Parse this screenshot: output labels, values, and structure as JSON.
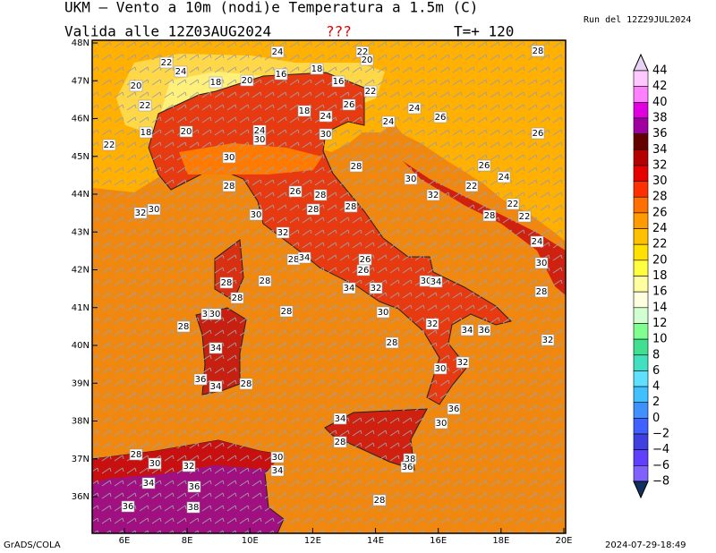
{
  "header": {
    "title": "UKM – Vento a 10m (nodi)e Temperatura a 1.5m (C)",
    "valid": "Valida alle 12Z03AUG2024",
    "flag": "???",
    "lead": "T=+ 120",
    "run": "Run del 12Z29JUL2024"
  },
  "map": {
    "lat_labels": [
      "48N",
      "47N",
      "46N",
      "45N",
      "44N",
      "43N",
      "42N",
      "41N",
      "40N",
      "39N",
      "38N",
      "37N",
      "36N"
    ],
    "lon_labels": [
      "6E",
      "8E",
      "10E",
      "12E",
      "14E",
      "16E",
      "18E",
      "20E"
    ],
    "contour_labels": [
      "24",
      "22",
      "24",
      "22",
      "20",
      "28",
      "16",
      "18",
      "20",
      "18",
      "20",
      "16",
      "22",
      "22",
      "18",
      "24",
      "26",
      "24",
      "24",
      "26",
      "20",
      "18",
      "24",
      "30",
      "30",
      "26",
      "22",
      "30",
      "28",
      "26",
      "24",
      "30",
      "32",
      "28",
      "26",
      "28",
      "22",
      "32",
      "30",
      "28",
      "28",
      "30",
      "28",
      "22",
      "22",
      "32",
      "24",
      "28",
      "34",
      "26",
      "30",
      "28",
      "28",
      "30",
      "34",
      "34",
      "32",
      "28",
      "28",
      "26",
      "32",
      "30",
      "28",
      "30",
      "32",
      "34",
      "36",
      "32",
      "28",
      "28",
      "34",
      "32",
      "30",
      "36",
      "34",
      "28",
      "34",
      "36",
      "30",
      "28",
      "38",
      "36",
      "28",
      "30",
      "32",
      "30",
      "34",
      "34",
      "36",
      "38",
      "36",
      "28"
    ]
  },
  "colorbar": {
    "labels": [
      "44",
      "42",
      "40",
      "38",
      "36",
      "34",
      "32",
      "30",
      "28",
      "26",
      "24",
      "22",
      "20",
      "18",
      "16",
      "14",
      "12",
      "10",
      "8",
      "6",
      "4",
      "2",
      "0",
      "−2",
      "−4",
      "−6",
      "−8"
    ],
    "colors": [
      "#e6d2f5",
      "#ffc8ff",
      "#ff80ff",
      "#e000e0",
      "#a000a0",
      "#640000",
      "#b40000",
      "#e60000",
      "#ff3000",
      "#ff7000",
      "#ff9a00",
      "#ffc000",
      "#ffe000",
      "#ffff40",
      "#ffffa0",
      "#ffffe0",
      "#d2ffd2",
      "#80ff90",
      "#40e090",
      "#40e0c0",
      "#60e0ff",
      "#40c0ff",
      "#4090ff",
      "#4060ff",
      "#4040e0",
      "#6040ff",
      "#8060ff",
      "#103060"
    ]
  },
  "footer": {
    "left": "GrADS/COLA",
    "right": "2024-07-29-18:49"
  }
}
